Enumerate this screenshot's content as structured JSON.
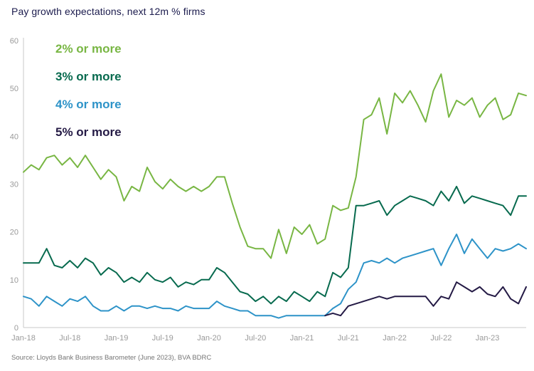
{
  "title": "Pay growth expectations, next 12m % firms",
  "source": "Source: Lloyds Bank Business Barometer (June 2023), BVA BDRC",
  "colors": {
    "title_text": "#1b1b4d",
    "axis_text": "#9a9a9a",
    "axis_line": "#c9c9c9",
    "background": "#ffffff"
  },
  "chart_data": {
    "type": "line",
    "title": "Pay growth expectations, next 12m % firms",
    "xlabel": "",
    "ylabel": "",
    "x_start": "Jan-18",
    "x_end": "Jun-23",
    "x_frequency": "monthly",
    "x_tick_labels": [
      "Jan-18",
      "Jul-18",
      "Jan-19",
      "Jul-19",
      "Jan-20",
      "Jul-20",
      "Jan-21",
      "Jul-21",
      "Jan-22",
      "Jul-22",
      "Jan-23"
    ],
    "yticks": [
      0,
      10,
      20,
      30,
      40,
      50,
      60
    ],
    "ylim": [
      0,
      60
    ],
    "grid": false,
    "legend_position": "top-left-inside",
    "series": [
      {
        "name": "2% or more",
        "color": "#78b643",
        "values": [
          32.5,
          34,
          33,
          35.5,
          36,
          34,
          35.5,
          33.5,
          36,
          33.5,
          31,
          33,
          31.5,
          26.5,
          29.5,
          28.5,
          33.5,
          30.5,
          29,
          31,
          29.5,
          28.5,
          29.5,
          28.5,
          29.5,
          31.5,
          31.5,
          26,
          21,
          17,
          16.5,
          16.5,
          14.5,
          20.5,
          15.5,
          21,
          19.5,
          21.5,
          17.5,
          18.5,
          25.5,
          24.5,
          25,
          31.5,
          43.5,
          44.5,
          48,
          40.5,
          49,
          47,
          49.5,
          46.5,
          43,
          49.5,
          53,
          44,
          47.5,
          46.5,
          48,
          44,
          46.5,
          48,
          43.5,
          44.5,
          49,
          48.5
        ]
      },
      {
        "name": "3% or more",
        "color": "#076a4e",
        "values": [
          13.5,
          13.5,
          13.5,
          16.5,
          13,
          12.5,
          14,
          12.5,
          14.5,
          13.5,
          11,
          12.5,
          11.5,
          9.5,
          10.5,
          9.5,
          11.5,
          10,
          9.5,
          10.5,
          8.5,
          9.5,
          9,
          10,
          10,
          12.5,
          11.5,
          9.5,
          7.5,
          7,
          5.5,
          6.5,
          5,
          6.5,
          5.5,
          7.5,
          6.5,
          5.5,
          7.5,
          6.5,
          11.5,
          10.5,
          12.5,
          25.5,
          25.5,
          26,
          26.5,
          23.5,
          25.5,
          26.5,
          27.5,
          27,
          26.5,
          25.5,
          28.5,
          26.5,
          29.5,
          26,
          27.5,
          27,
          26.5,
          26,
          25.5,
          23.5,
          27.5,
          27.5
        ]
      },
      {
        "name": "4% or more",
        "color": "#2d93c8",
        "values": [
          6.5,
          6,
          4.5,
          6.5,
          5.5,
          4.5,
          6,
          5.5,
          6.5,
          4.5,
          3.5,
          3.5,
          4.5,
          3.5,
          4.5,
          4.5,
          4,
          4.5,
          4,
          4,
          3.5,
          4.5,
          4,
          4,
          4,
          5.5,
          4.5,
          4,
          3.5,
          3.5,
          2.5,
          2.5,
          2.5,
          2,
          2.5,
          2.5,
          2.5,
          2.5,
          2.5,
          2.5,
          4,
          5,
          8,
          9.5,
          13.5,
          14,
          13.5,
          14.5,
          13.5,
          14.5,
          15,
          15.5,
          16,
          16.5,
          13,
          16.5,
          19.5,
          15.5,
          18.5,
          16.5,
          14.5,
          16.5,
          16,
          16.5,
          17.5,
          16.5
        ]
      },
      {
        "name": "5% or more",
        "color": "#241a45",
        "values": [
          null,
          null,
          null,
          null,
          null,
          null,
          null,
          null,
          null,
          null,
          null,
          null,
          null,
          null,
          null,
          null,
          null,
          null,
          null,
          null,
          null,
          null,
          null,
          null,
          null,
          null,
          null,
          null,
          null,
          null,
          null,
          null,
          null,
          null,
          null,
          null,
          null,
          null,
          null,
          2.5,
          3,
          2.5,
          4.5,
          5,
          5.5,
          6,
          6.5,
          6,
          6.5,
          6.5,
          6.5,
          6.5,
          6.5,
          4.5,
          6.5,
          6,
          9.5,
          8.5,
          7.5,
          8.5,
          7,
          6.5,
          8.5,
          6,
          5,
          8.5
        ]
      }
    ]
  }
}
